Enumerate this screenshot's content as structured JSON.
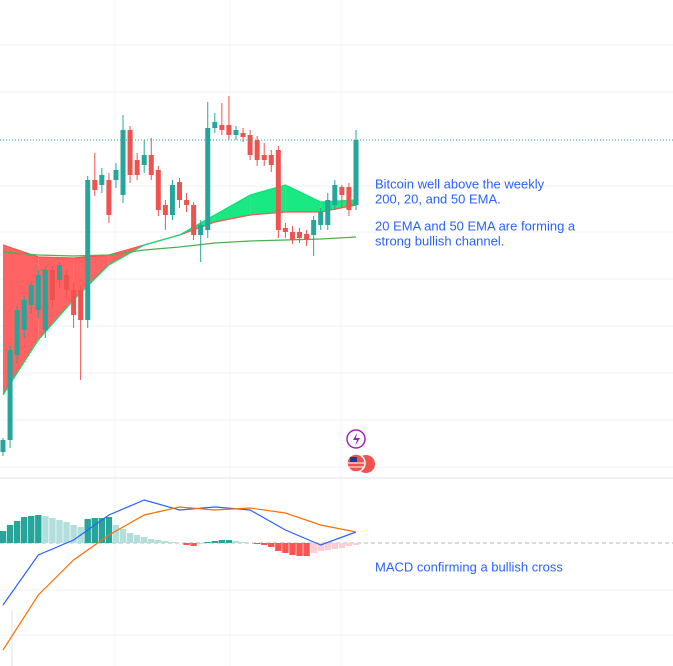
{
  "chart_data": [
    {
      "type": "candlestick",
      "ylim": [
        0,
        478
      ],
      "up_color": "#26a69a",
      "down_color": "#ef5350",
      "open": [
        26,
        38,
        123,
        148,
        173,
        168,
        148,
        208,
        198,
        203,
        188,
        188,
        158,
        298,
        293,
        298,
        298,
        283,
        348,
        318,
        313,
        323,
        308,
        273,
        263,
        296,
        278,
        273,
        243,
        248,
        350,
        353,
        353,
        343,
        345,
        343,
        338,
        323,
        323,
        328,
        250,
        246,
        246,
        244,
        243,
        253,
        253,
        273,
        291,
        291,
        273
      ],
      "high": [
        40,
        132,
        172,
        182,
        196,
        208,
        212,
        212,
        216,
        208,
        195,
        192,
        302,
        325,
        310,
        305,
        315,
        363,
        352,
        325,
        338,
        340,
        312,
        278,
        298,
        300,
        285,
        276,
        258,
        376,
        365,
        375,
        382,
        352,
        350,
        348,
        342,
        335,
        328,
        332,
        255,
        252,
        250,
        248,
        262,
        270,
        285,
        298,
        293,
        295,
        348
      ],
      "low": [
        22,
        30,
        115,
        140,
        165,
        160,
        140,
        170,
        190,
        180,
        150,
        98,
        150,
        282,
        285,
        255,
        290,
        275,
        295,
        298,
        305,
        298,
        262,
        248,
        258,
        270,
        266,
        238,
        216,
        240,
        345,
        343,
        338,
        338,
        336,
        318,
        312,
        312,
        306,
        240,
        240,
        234,
        235,
        232,
        222,
        248,
        248,
        268,
        270,
        262,
        268
      ],
      "close": [
        38,
        128,
        168,
        178,
        193,
        203,
        208,
        178,
        213,
        188,
        163,
        158,
        298,
        288,
        303,
        263,
        308,
        348,
        303,
        303,
        323,
        303,
        268,
        263,
        293,
        278,
        273,
        243,
        253,
        350,
        356,
        348,
        343,
        348,
        341,
        323,
        318,
        318,
        313,
        248,
        246,
        238,
        240,
        238,
        258,
        266,
        278,
        293,
        283,
        268,
        338
      ],
      "series": [
        {
          "color": "#ff5252",
          "x": [
            0,
            5,
            10,
            15,
            20,
            25,
            30,
            35,
            40,
            45,
            50
          ],
          "values": [
            233,
            221,
            220,
            223,
            233,
            243,
            256,
            263,
            266,
            266,
            273
          ]
        },
        {
          "color": "#00e676",
          "x": [
            0,
            5,
            10,
            15,
            20,
            25,
            30,
            35,
            40,
            45,
            50
          ],
          "values": [
            83,
            138,
            178,
            213,
            233,
            243,
            263,
            283,
            293,
            276,
            278
          ]
        },
        {
          "color": "#4caf50",
          "x": [
            0,
            5,
            10,
            15,
            20,
            25,
            30,
            35,
            40,
            45,
            50
          ],
          "values": [
            226,
            223,
            222,
            223,
            228,
            231,
            235,
            237,
            238,
            239,
            241
          ]
        }
      ],
      "cloud_colors": {
        "up": "#00e676",
        "down": "#ff5252"
      },
      "annotations": [
        "Bitcoin well above the weekly",
        "200, 20, and 50 EMA.",
        "20 EMA and 50 EMA are forming a",
        "strong bullish channel."
      ]
    },
    {
      "type": "macd",
      "ylim": [
        -123,
        63
      ],
      "histogram": [
        12,
        18,
        22,
        26,
        27,
        28,
        27,
        25,
        23,
        21,
        18,
        16,
        24,
        25,
        25,
        26,
        18,
        14,
        10,
        8,
        6,
        4,
        3,
        2,
        1,
        0,
        -2,
        -3,
        -1,
        1,
        2,
        3,
        3,
        2,
        1,
        0,
        -1,
        -2,
        -4,
        -8,
        -10,
        -12,
        -13,
        -13,
        -10,
        -8,
        -7,
        -6,
        -5,
        -3,
        -2
      ],
      "histogram_colors": {
        "rising_up": "#26a69a",
        "falling_up": "#b2dfdb",
        "falling_down": "#ff5252",
        "rising_down": "#ffcdd2"
      },
      "series": [
        {
          "color": "#2962ff",
          "x": [
            0,
            5,
            10,
            15,
            20,
            25,
            30,
            35,
            40,
            45,
            50
          ],
          "values": [
            -62,
            -12,
            3,
            28,
            43,
            33,
            36,
            33,
            13,
            -2,
            11
          ]
        },
        {
          "color": "#ff6d00",
          "x": [
            0,
            5,
            10,
            15,
            20,
            25,
            30,
            35,
            40,
            45,
            50
          ],
          "values": [
            -107,
            -52,
            -17,
            8,
            28,
            36,
            33,
            35,
            30,
            18,
            11
          ]
        }
      ],
      "annotations": [
        "MACD confirming a bullish cross"
      ]
    }
  ]
}
